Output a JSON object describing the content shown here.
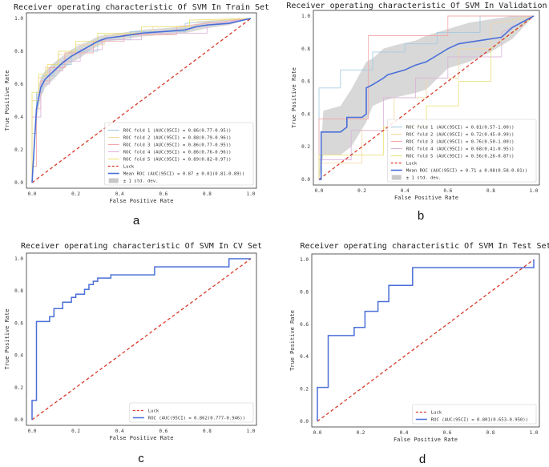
{
  "chart_data": [
    {
      "letter": "a",
      "type": "line",
      "title": "Receiver operating characteristic Of SVM In Train Set",
      "xlabel": "False Positive Rate",
      "ylabel": "True Positive Rate",
      "xlim": [
        0,
        1
      ],
      "ylim": [
        0,
        1
      ],
      "xticks": [
        "0.0",
        "0.2",
        "0.4",
        "0.6",
        "0.8",
        "1.0"
      ],
      "yticks": [
        "0.0",
        "0.2",
        "0.4",
        "0.6",
        "0.8",
        "1.0"
      ],
      "legend_position": "lower-right",
      "luck_label": "Luck",
      "band_label": "± 1 std. dev.",
      "mean": {
        "label": "Mean ROC (AUC(95CI) = 0.87 ± 0.01(0.81-0.89))",
        "color": "#4a6fd8",
        "x": [
          0,
          0.02,
          0.04,
          0.06,
          0.1,
          0.14,
          0.18,
          0.22,
          0.26,
          0.3,
          0.34,
          0.4,
          0.5,
          0.6,
          0.7,
          0.75,
          0.8,
          0.9,
          1.0
        ],
        "y": [
          0,
          0.45,
          0.58,
          0.63,
          0.68,
          0.73,
          0.77,
          0.8,
          0.83,
          0.86,
          0.88,
          0.89,
          0.91,
          0.92,
          0.93,
          0.95,
          0.96,
          0.97,
          1.0
        ]
      },
      "band": {
        "x": [
          0,
          0.02,
          0.04,
          0.06,
          0.1,
          0.14,
          0.18,
          0.22,
          0.26,
          0.3,
          0.34,
          0.4,
          0.5,
          0.6,
          0.7,
          0.8,
          0.9,
          1.0
        ],
        "lower": [
          0,
          0.38,
          0.52,
          0.58,
          0.63,
          0.69,
          0.73,
          0.76,
          0.8,
          0.83,
          0.86,
          0.87,
          0.89,
          0.9,
          0.91,
          0.94,
          0.96,
          1.0
        ],
        "upper": [
          0,
          0.52,
          0.64,
          0.68,
          0.73,
          0.77,
          0.81,
          0.84,
          0.86,
          0.89,
          0.9,
          0.91,
          0.93,
          0.94,
          0.95,
          0.98,
          0.98,
          1.0
        ]
      },
      "folds": [
        {
          "label": "ROC fold 1 (AUC(95CI) = 0.86(0.77-0.95))",
          "color": "#9ec9e0",
          "x": [
            0,
            0,
            0.02,
            0.02,
            0.05,
            0.05,
            0.1,
            0.1,
            0.18,
            0.18,
            0.3,
            0.3,
            0.45,
            0.45,
            0.7,
            0.7,
            1
          ],
          "y": [
            0,
            0.3,
            0.3,
            0.55,
            0.55,
            0.65,
            0.65,
            0.72,
            0.72,
            0.8,
            0.8,
            0.87,
            0.87,
            0.92,
            0.92,
            0.97,
            1
          ]
        },
        {
          "label": "ROC fold 2 (AUC(95CI) = 0.88(0.79-0.96))",
          "color": "#f2d7a0",
          "x": [
            0,
            0,
            0.03,
            0.03,
            0.06,
            0.06,
            0.12,
            0.12,
            0.2,
            0.2,
            0.33,
            0.33,
            0.55,
            0.55,
            0.75,
            0.75,
            1
          ],
          "y": [
            0,
            0.5,
            0.5,
            0.64,
            0.64,
            0.7,
            0.7,
            0.78,
            0.78,
            0.84,
            0.84,
            0.9,
            0.9,
            0.95,
            0.95,
            0.98,
            1
          ]
        },
        {
          "label": "ROC fold 3 (AUC(95CI) = 0.86(0.77-0.95))",
          "color": "#f3a6a6",
          "x": [
            0,
            0,
            0.02,
            0.02,
            0.04,
            0.04,
            0.08,
            0.08,
            0.15,
            0.15,
            0.28,
            0.28,
            0.42,
            0.42,
            0.66,
            0.66,
            1
          ],
          "y": [
            0,
            0.1,
            0.1,
            0.45,
            0.45,
            0.62,
            0.62,
            0.7,
            0.7,
            0.79,
            0.79,
            0.86,
            0.86,
            0.9,
            0.9,
            0.95,
            1
          ]
        },
        {
          "label": "ROC fold 4 (AUC(95CI) = 0.86(0.76-0.96))",
          "color": "#d9b3d9",
          "x": [
            0,
            0,
            0.04,
            0.04,
            0.08,
            0.08,
            0.14,
            0.14,
            0.22,
            0.22,
            0.32,
            0.32,
            0.5,
            0.5,
            0.8,
            0.8,
            1
          ],
          "y": [
            0,
            0.4,
            0.4,
            0.6,
            0.6,
            0.68,
            0.68,
            0.74,
            0.74,
            0.81,
            0.81,
            0.87,
            0.87,
            0.91,
            0.91,
            0.96,
            1
          ]
        },
        {
          "label": "ROC fold 5 (AUC(95CI) = 0.89(0.82-0.97))",
          "color": "#e8e070",
          "x": [
            0,
            0,
            0.03,
            0.03,
            0.07,
            0.07,
            0.12,
            0.12,
            0.2,
            0.2,
            0.3,
            0.3,
            0.5,
            0.5,
            0.72,
            0.72,
            1
          ],
          "y": [
            0,
            0.55,
            0.55,
            0.66,
            0.66,
            0.72,
            0.72,
            0.8,
            0.8,
            0.86,
            0.86,
            0.91,
            0.91,
            0.95,
            0.95,
            0.99,
            1
          ]
        }
      ]
    },
    {
      "letter": "b",
      "type": "line",
      "title": "Receiver operating characteristic Of SVM In Validation Set",
      "xlabel": "False Positive Rate",
      "ylabel": "True Positive Rate",
      "xlim": [
        0,
        1
      ],
      "ylim": [
        0,
        1
      ],
      "xticks": [
        "0.0",
        "0.2",
        "0.4",
        "0.6",
        "0.8",
        "1.0"
      ],
      "yticks": [
        "0.0",
        "0.2",
        "0.4",
        "0.6",
        "0.8",
        "1.0"
      ],
      "legend_position": "lower-right",
      "luck_label": "Luck",
      "band_label": "± 1 std. dev.",
      "mean": {
        "label": "Mean ROC (AUC(95CI) = 0.71 ± 0.08(0.58-0.81))",
        "color": "#4a6fd8",
        "x": [
          0,
          0.01,
          0.01,
          0.1,
          0.13,
          0.13,
          0.2,
          0.22,
          0.22,
          0.25,
          0.3,
          0.32,
          0.4,
          0.45,
          0.5,
          0.55,
          0.6,
          0.65,
          0.75,
          0.85,
          0.9,
          1.0
        ],
        "y": [
          0,
          0.0,
          0.29,
          0.29,
          0.32,
          0.38,
          0.38,
          0.4,
          0.56,
          0.58,
          0.62,
          0.64,
          0.67,
          0.7,
          0.72,
          0.76,
          0.8,
          0.83,
          0.85,
          0.87,
          0.93,
          1.0
        ]
      },
      "band": {
        "x": [
          0,
          0.02,
          0.1,
          0.15,
          0.22,
          0.25,
          0.3,
          0.35,
          0.45,
          0.5,
          0.6,
          0.7,
          0.8,
          0.9,
          1.0
        ],
        "lower": [
          0,
          0.15,
          0.15,
          0.2,
          0.35,
          0.45,
          0.48,
          0.5,
          0.53,
          0.55,
          0.68,
          0.72,
          0.78,
          0.86,
          1.0
        ],
        "upper": [
          0,
          0.42,
          0.45,
          0.55,
          0.72,
          0.74,
          0.8,
          0.82,
          0.85,
          0.88,
          0.92,
          0.96,
          0.98,
          1.0,
          1.0
        ]
      },
      "folds": [
        {
          "label": "ROC fold 1 (AUC(95CI) = 0.81(0.57-1.00))",
          "color": "#9ec9e0",
          "x": [
            0,
            0,
            0.1,
            0.1,
            0.25,
            0.25,
            0.4,
            0.4,
            0.55,
            0.55,
            0.75,
            0.75,
            1
          ],
          "y": [
            0,
            0.56,
            0.56,
            0.67,
            0.67,
            0.78,
            0.78,
            0.83,
            0.83,
            0.9,
            0.9,
            1,
            1
          ]
        },
        {
          "label": "ROC fold 2 (AUC(95CI) = 0.72(0.45-0.99))",
          "color": "#f2d7a0",
          "x": [
            0,
            0,
            0.2,
            0.2,
            0.35,
            0.35,
            0.5,
            0.5,
            0.65,
            0.65,
            0.8,
            0.8,
            1
          ],
          "y": [
            0,
            0.1,
            0.1,
            0.3,
            0.3,
            0.5,
            0.5,
            0.62,
            0.62,
            0.8,
            0.8,
            0.95,
            1
          ]
        },
        {
          "label": "ROC fold 3 (AUC(95CI) = 0.76(0.50-1.00))",
          "color": "#f3a6a6",
          "x": [
            0,
            0,
            0.23,
            0.23,
            0.45,
            0.45,
            0.6,
            0.6,
            0.75,
            0.75,
            1
          ],
          "y": [
            0,
            0.37,
            0.37,
            0.88,
            0.88,
            0.88,
            0.88,
            1,
            1,
            1,
            1
          ]
        },
        {
          "label": "ROC fold 4 (AUC(95CI) = 0.68(0.41-0.95))",
          "color": "#d9b3d9",
          "x": [
            0,
            0,
            0.15,
            0.15,
            0.3,
            0.3,
            0.45,
            0.45,
            0.6,
            0.6,
            0.85,
            0.85,
            1
          ],
          "y": [
            0,
            0.12,
            0.12,
            0.3,
            0.3,
            0.5,
            0.5,
            0.62,
            0.62,
            0.75,
            0.75,
            0.9,
            1
          ]
        },
        {
          "label": "ROC fold 5 (AUC(95CI) = 0.56(0.26-0.87))",
          "color": "#e8e070",
          "x": [
            0,
            0,
            0.3,
            0.3,
            0.5,
            0.5,
            0.65,
            0.65,
            0.8,
            0.8,
            1
          ],
          "y": [
            0,
            0.15,
            0.15,
            0.32,
            0.32,
            0.45,
            0.45,
            0.6,
            0.6,
            0.8,
            1
          ]
        }
      ]
    },
    {
      "letter": "c",
      "type": "line",
      "title": "Receiver operating characteristic Of SVM In CV Set",
      "xlabel": "False Positive Rate",
      "ylabel": "True Positive Rate",
      "xlim": [
        0,
        1
      ],
      "ylim": [
        0,
        1
      ],
      "xticks": [
        "0.0",
        "0.2",
        "0.4",
        "0.6",
        "0.8",
        "1.0"
      ],
      "yticks": [
        "0.0",
        "0.2",
        "0.4",
        "0.6",
        "0.8",
        "1.0"
      ],
      "legend_position": "lower-right",
      "luck_label": "Luck",
      "series": [
        {
          "label": "ROC (AUC(95CI) = 0.862(0.777-0.946))",
          "color": "#4a6fd8",
          "x": [
            0,
            0,
            0.02,
            0.02,
            0.04,
            0.04,
            0.08,
            0.08,
            0.1,
            0.1,
            0.14,
            0.14,
            0.18,
            0.18,
            0.2,
            0.2,
            0.24,
            0.24,
            0.26,
            0.26,
            0.28,
            0.28,
            0.3,
            0.3,
            0.36,
            0.36,
            0.56,
            0.56,
            0.9,
            0.9,
            1
          ],
          "y": [
            0,
            0.12,
            0.12,
            0.61,
            0.61,
            0.61,
            0.61,
            0.64,
            0.64,
            0.69,
            0.69,
            0.73,
            0.73,
            0.76,
            0.76,
            0.78,
            0.78,
            0.81,
            0.81,
            0.84,
            0.84,
            0.86,
            0.86,
            0.88,
            0.88,
            0.9,
            0.9,
            0.95,
            0.95,
            1,
            1
          ]
        }
      ]
    },
    {
      "letter": "d",
      "type": "line",
      "title": "Receiver operating characteristic Of SVM In Test Set",
      "xlabel": "False Positive Rate",
      "ylabel": "True Positive Rate",
      "xlim": [
        0,
        1
      ],
      "ylim": [
        0,
        1
      ],
      "xticks": [
        "0.0",
        "0.2",
        "0.4",
        "0.6",
        "0.8",
        "1.0"
      ],
      "yticks": [
        "0.0",
        "0.2",
        "0.4",
        "0.6",
        "0.8",
        "1.0"
      ],
      "legend_position": "lower-right",
      "luck_label": "Luck",
      "series": [
        {
          "label": "ROC (AUC(95CI) = 0.801(0.653-0.950))",
          "color": "#4a6fd8",
          "x": [
            0,
            0,
            0.05,
            0.05,
            0.11,
            0.11,
            0.17,
            0.17,
            0.22,
            0.22,
            0.28,
            0.28,
            0.33,
            0.33,
            0.44,
            0.44,
            1,
            1
          ],
          "y": [
            0,
            0.21,
            0.21,
            0.53,
            0.53,
            0.53,
            0.53,
            0.58,
            0.58,
            0.68,
            0.68,
            0.74,
            0.74,
            0.84,
            0.84,
            0.95,
            0.95,
            1
          ]
        }
      ]
    }
  ]
}
